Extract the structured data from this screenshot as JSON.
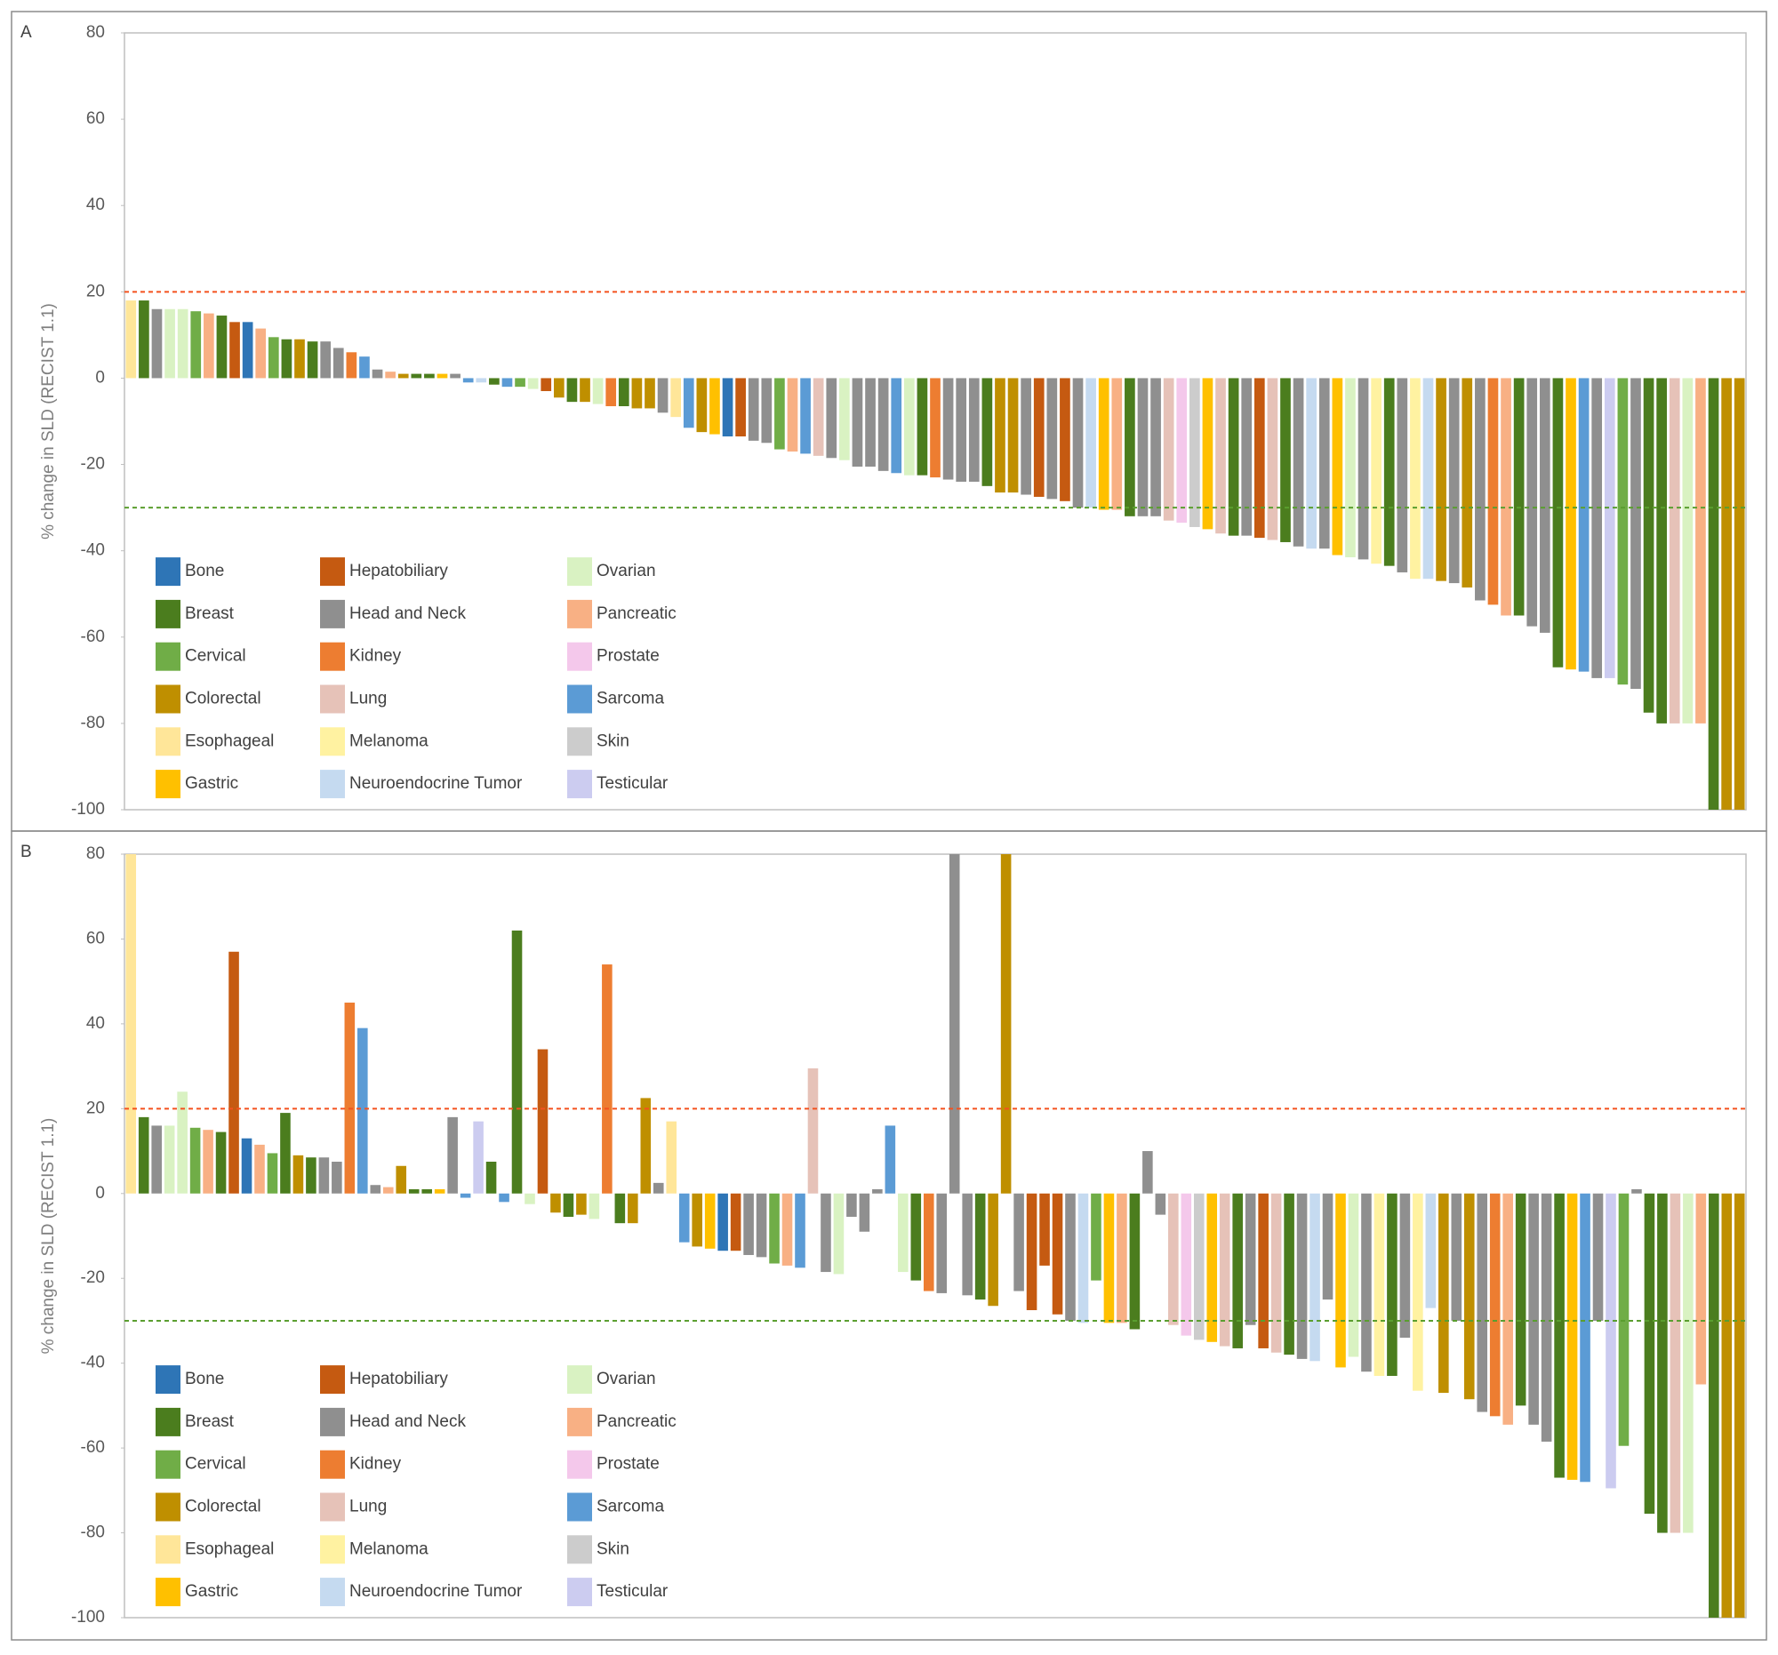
{
  "chart_data": [
    {
      "type": "bar",
      "panel_label": "A",
      "y_label": "% change in SLD (RECIST 1.1)",
      "ylim": [
        -100,
        80
      ],
      "yticks": [
        80,
        60,
        40,
        20,
        0,
        -20,
        -40,
        -60,
        -80,
        -100
      ],
      "reference_lines": [
        {
          "value": 20,
          "color": "#f4511e"
        },
        {
          "value": -30,
          "color": "#5a9e2f"
        }
      ],
      "legend_position": "lower left",
      "legend": [
        {
          "name": "Bone",
          "color": "#2e75b6"
        },
        {
          "name": "Breast",
          "color": "#4b7d1e"
        },
        {
          "name": "Cervical",
          "color": "#70ad47"
        },
        {
          "name": "Colorectal",
          "color": "#bf8f00"
        },
        {
          "name": "Esophageal",
          "color": "#ffe699"
        },
        {
          "name": "Gastric",
          "color": "#ffc000"
        },
        {
          "name": "Hepatobiliary",
          "color": "#c55a11"
        },
        {
          "name": "Head and Neck",
          "color": "#8f8f8f"
        },
        {
          "name": "Kidney",
          "color": "#ed7d31"
        },
        {
          "name": "Lung",
          "color": "#e6c2b8"
        },
        {
          "name": "Melanoma",
          "color": "#fff2a1"
        },
        {
          "name": "Neuroendocrine Tumor",
          "color": "#c5daf0"
        },
        {
          "name": "Ovarian",
          "color": "#d9f2c2"
        },
        {
          "name": "Pancreatic",
          "color": "#f8b084"
        },
        {
          "name": "Prostate",
          "color": "#f4c8eb"
        },
        {
          "name": "Sarcoma",
          "color": "#5b9bd5"
        },
        {
          "name": "Skin",
          "color": "#cccccc"
        },
        {
          "name": "Testicular",
          "color": "#ccccf0"
        }
      ],
      "values": [
        18,
        18,
        16,
        16,
        16,
        15.5,
        15,
        14.5,
        13,
        13,
        11.5,
        9.5,
        9,
        9,
        8.5,
        8.5,
        7,
        6,
        5,
        2,
        1.5,
        1,
        1,
        1,
        1,
        1,
        -1,
        -1,
        -1.5,
        -2,
        -2,
        -2.5,
        -3,
        -4.5,
        -5.5,
        -5.5,
        -6,
        -6.5,
        -6.5,
        -7,
        -7,
        -8,
        -9,
        -11.5,
        -12.5,
        -13,
        -13.5,
        -13.5,
        -14.5,
        -15,
        -16.5,
        -17,
        -17.5,
        -18,
        -18.5,
        -19,
        -20.5,
        -20.5,
        -21.5,
        -22,
        -22.5,
        -22.5,
        -23,
        -23.5,
        -24,
        -24,
        -25,
        -26.5,
        -26.5,
        -27,
        -27.5,
        -28,
        -28.5,
        -30,
        -30,
        -30.5,
        -30.5,
        -32,
        -32,
        -32,
        -33,
        -33.5,
        -34.5,
        -35,
        -36,
        -36.5,
        -36.5,
        -37,
        -37.5,
        -38,
        -39,
        -39.5,
        -39.5,
        -41,
        -41.5,
        -42,
        -43,
        -43.5,
        -45,
        -46.5,
        -46.5,
        -47,
        -47.5,
        -48.5,
        -51.5,
        -52.5,
        -55,
        -55,
        -57.5,
        -59,
        -67,
        -67.5,
        -68,
        -69.5,
        -69.5,
        -71,
        -72,
        -77.5,
        -80,
        -80,
        -80,
        -80,
        -100,
        -100,
        -100
      ],
      "colors": [
        "#ffe699",
        "#4b7d1e",
        "#8f8f8f",
        "#d9f2c2",
        "#d9f2c2",
        "#70ad47",
        "#f8b084",
        "#4b7d1e",
        "#c55a11",
        "#2e75b6",
        "#f8b084",
        "#70ad47",
        "#4b7d1e",
        "#bf8f00",
        "#4b7d1e",
        "#8f8f8f",
        "#8f8f8f",
        "#ed7d31",
        "#5b9bd5",
        "#8f8f8f",
        "#f8b084",
        "#bf8f00",
        "#4b7d1e",
        "#4b7d1e",
        "#ffc000",
        "#8f8f8f",
        "#5b9bd5",
        "#c5daf0",
        "#4b7d1e",
        "#5b9bd5",
        "#70ad47",
        "#d9f2c2",
        "#c55a11",
        "#bf8f00",
        "#4b7d1e",
        "#bf8f00",
        "#d9f2c2",
        "#ed7d31",
        "#4b7d1e",
        "#bf8f00",
        "#bf8f00",
        "#8f8f8f",
        "#ffe699",
        "#5b9bd5",
        "#bf8f00",
        "#ffc000",
        "#2e75b6",
        "#c55a11",
        "#8f8f8f",
        "#8f8f8f",
        "#70ad47",
        "#f8b084",
        "#5b9bd5",
        "#e6c2b8",
        "#8f8f8f",
        "#d9f2c2",
        "#8f8f8f",
        "#8f8f8f",
        "#8f8f8f",
        "#5b9bd5",
        "#d9f2c2",
        "#4b7d1e",
        "#ed7d31",
        "#8f8f8f",
        "#8f8f8f",
        "#8f8f8f",
        "#4b7d1e",
        "#bf8f00",
        "#bf8f00",
        "#8f8f8f",
        "#c55a11",
        "#8f8f8f",
        "#c55a11",
        "#8f8f8f",
        "#c5daf0",
        "#ffc000",
        "#f8b084",
        "#4b7d1e",
        "#8f8f8f",
        "#8f8f8f",
        "#e6c2b8",
        "#f4c8eb",
        "#cccccc",
        "#ffc000",
        "#e6c2b8",
        "#4b7d1e",
        "#8f8f8f",
        "#c55a11",
        "#e6c2b8",
        "#4b7d1e",
        "#8f8f8f",
        "#c5daf0",
        "#8f8f8f",
        "#ffc000",
        "#d9f2c2",
        "#8f8f8f",
        "#fff2a1",
        "#4b7d1e",
        "#8f8f8f",
        "#fff2a1",
        "#c5daf0",
        "#bf8f00",
        "#8f8f8f",
        "#bf8f00",
        "#8f8f8f",
        "#ed7d31",
        "#f8b084",
        "#4b7d1e",
        "#8f8f8f",
        "#8f8f8f",
        "#4b7d1e",
        "#ffc000",
        "#5b9bd5",
        "#8f8f8f",
        "#ccccf0",
        "#70ad47",
        "#8f8f8f",
        "#4b7d1e",
        "#4b7d1e",
        "#e6c2b8",
        "#d9f2c2",
        "#f8b084",
        "#4b7d1e",
        "#bf8f00",
        "#bf8f00"
      ]
    },
    {
      "type": "bar",
      "panel_label": "B",
      "y_label": "% change in SLD (RECIST 1.1)",
      "ylim": [
        -100,
        80
      ],
      "yticks": [
        80,
        60,
        40,
        20,
        0,
        -20,
        -40,
        -60,
        -80,
        -100
      ],
      "reference_lines": [
        {
          "value": 20,
          "color": "#f4511e"
        },
        {
          "value": -30,
          "color": "#5a9e2f"
        }
      ],
      "legend_position": "lower left",
      "legend": [
        {
          "name": "Bone",
          "color": "#2e75b6"
        },
        {
          "name": "Breast",
          "color": "#4b7d1e"
        },
        {
          "name": "Cervical",
          "color": "#70ad47"
        },
        {
          "name": "Colorectal",
          "color": "#bf8f00"
        },
        {
          "name": "Esophageal",
          "color": "#ffe699"
        },
        {
          "name": "Gastric",
          "color": "#ffc000"
        },
        {
          "name": "Hepatobiliary",
          "color": "#c55a11"
        },
        {
          "name": "Head and Neck",
          "color": "#8f8f8f"
        },
        {
          "name": "Kidney",
          "color": "#ed7d31"
        },
        {
          "name": "Lung",
          "color": "#e6c2b8"
        },
        {
          "name": "Melanoma",
          "color": "#fff2a1"
        },
        {
          "name": "Neuroendocrine Tumor",
          "color": "#c5daf0"
        },
        {
          "name": "Ovarian",
          "color": "#d9f2c2"
        },
        {
          "name": "Pancreatic",
          "color": "#f8b084"
        },
        {
          "name": "Prostate",
          "color": "#f4c8eb"
        },
        {
          "name": "Sarcoma",
          "color": "#5b9bd5"
        },
        {
          "name": "Skin",
          "color": "#cccccc"
        },
        {
          "name": "Testicular",
          "color": "#ccccf0"
        }
      ],
      "values": [
        80,
        18,
        16,
        16,
        24,
        15.5,
        15,
        14.5,
        57,
        13,
        11.5,
        9.5,
        19,
        9,
        8.5,
        8.5,
        7.5,
        45,
        39,
        2,
        1.5,
        6.5,
        1,
        1,
        1,
        18,
        -1,
        17,
        7.5,
        -2,
        62,
        -2.5,
        34,
        -4.5,
        -5.5,
        -5,
        -6,
        54,
        -7,
        -7,
        22.5,
        2.5,
        17,
        -11.5,
        -12.5,
        -13,
        -13.5,
        -13.5,
        -14.5,
        -15,
        -16.5,
        -17,
        -17.5,
        29.5,
        -18.5,
        -19,
        -5.5,
        -9,
        1,
        16,
        -18.5,
        -20.5,
        -23,
        -23.5,
        80,
        -24,
        -25,
        -26.5,
        80,
        -23,
        -27.5,
        -17,
        -28.5,
        -30,
        -30.5,
        -20.5,
        -30.5,
        -30.5,
        -32,
        10,
        -5,
        -31,
        -33.5,
        -34.5,
        -35,
        -36,
        -36.5,
        -31,
        -36.5,
        -37.5,
        -38,
        -39,
        -39.5,
        -25,
        -41,
        -38.5,
        -42,
        -43,
        -43,
        -34,
        -46.5,
        -27,
        -47,
        -30,
        -48.5,
        -51.5,
        -52.5,
        -54.5,
        -50,
        -54.5,
        -58.5,
        -67,
        -67.5,
        -68,
        -30,
        -69.5,
        -59.5,
        1,
        -75.5,
        -80,
        -80,
        -80,
        -45,
        -100,
        -100,
        -100
      ],
      "colors": [
        "#ffe699",
        "#4b7d1e",
        "#8f8f8f",
        "#d9f2c2",
        "#d9f2c2",
        "#70ad47",
        "#f8b084",
        "#4b7d1e",
        "#c55a11",
        "#2e75b6",
        "#f8b084",
        "#70ad47",
        "#4b7d1e",
        "#bf8f00",
        "#4b7d1e",
        "#8f8f8f",
        "#8f8f8f",
        "#ed7d31",
        "#5b9bd5",
        "#8f8f8f",
        "#f8b084",
        "#bf8f00",
        "#4b7d1e",
        "#4b7d1e",
        "#ffc000",
        "#8f8f8f",
        "#5b9bd5",
        "#ccccf0",
        "#4b7d1e",
        "#5b9bd5",
        "#4b7d1e",
        "#d9f2c2",
        "#c55a11",
        "#bf8f00",
        "#4b7d1e",
        "#bf8f00",
        "#d9f2c2",
        "#ed7d31",
        "#4b7d1e",
        "#bf8f00",
        "#bf8f00",
        "#8f8f8f",
        "#ffe699",
        "#5b9bd5",
        "#bf8f00",
        "#ffc000",
        "#2e75b6",
        "#c55a11",
        "#8f8f8f",
        "#8f8f8f",
        "#70ad47",
        "#f8b084",
        "#5b9bd5",
        "#e6c2b8",
        "#8f8f8f",
        "#d9f2c2",
        "#8f8f8f",
        "#8f8f8f",
        "#8f8f8f",
        "#5b9bd5",
        "#d9f2c2",
        "#4b7d1e",
        "#ed7d31",
        "#8f8f8f",
        "#8f8f8f",
        "#8f8f8f",
        "#4b7d1e",
        "#bf8f00",
        "#bf8f00",
        "#8f8f8f",
        "#c55a11",
        "#c55a11",
        "#c55a11",
        "#8f8f8f",
        "#c5daf0",
        "#70ad47",
        "#ffc000",
        "#f8b084",
        "#4b7d1e",
        "#8f8f8f",
        "#8f8f8f",
        "#e6c2b8",
        "#f4c8eb",
        "#cccccc",
        "#ffc000",
        "#e6c2b8",
        "#4b7d1e",
        "#8f8f8f",
        "#c55a11",
        "#e6c2b8",
        "#4b7d1e",
        "#8f8f8f",
        "#c5daf0",
        "#8f8f8f",
        "#ffc000",
        "#d9f2c2",
        "#8f8f8f",
        "#fff2a1",
        "#4b7d1e",
        "#8f8f8f",
        "#fff2a1",
        "#c5daf0",
        "#bf8f00",
        "#8f8f8f",
        "#bf8f00",
        "#8f8f8f",
        "#ed7d31",
        "#f8b084",
        "#4b7d1e",
        "#8f8f8f",
        "#8f8f8f",
        "#4b7d1e",
        "#ffc000",
        "#5b9bd5",
        "#8f8f8f",
        "#ccccf0",
        "#70ad47",
        "#8f8f8f",
        "#4b7d1e",
        "#4b7d1e",
        "#e6c2b8",
        "#d9f2c2",
        "#f8b084",
        "#4b7d1e",
        "#bf8f00",
        "#bf8f00"
      ]
    }
  ]
}
